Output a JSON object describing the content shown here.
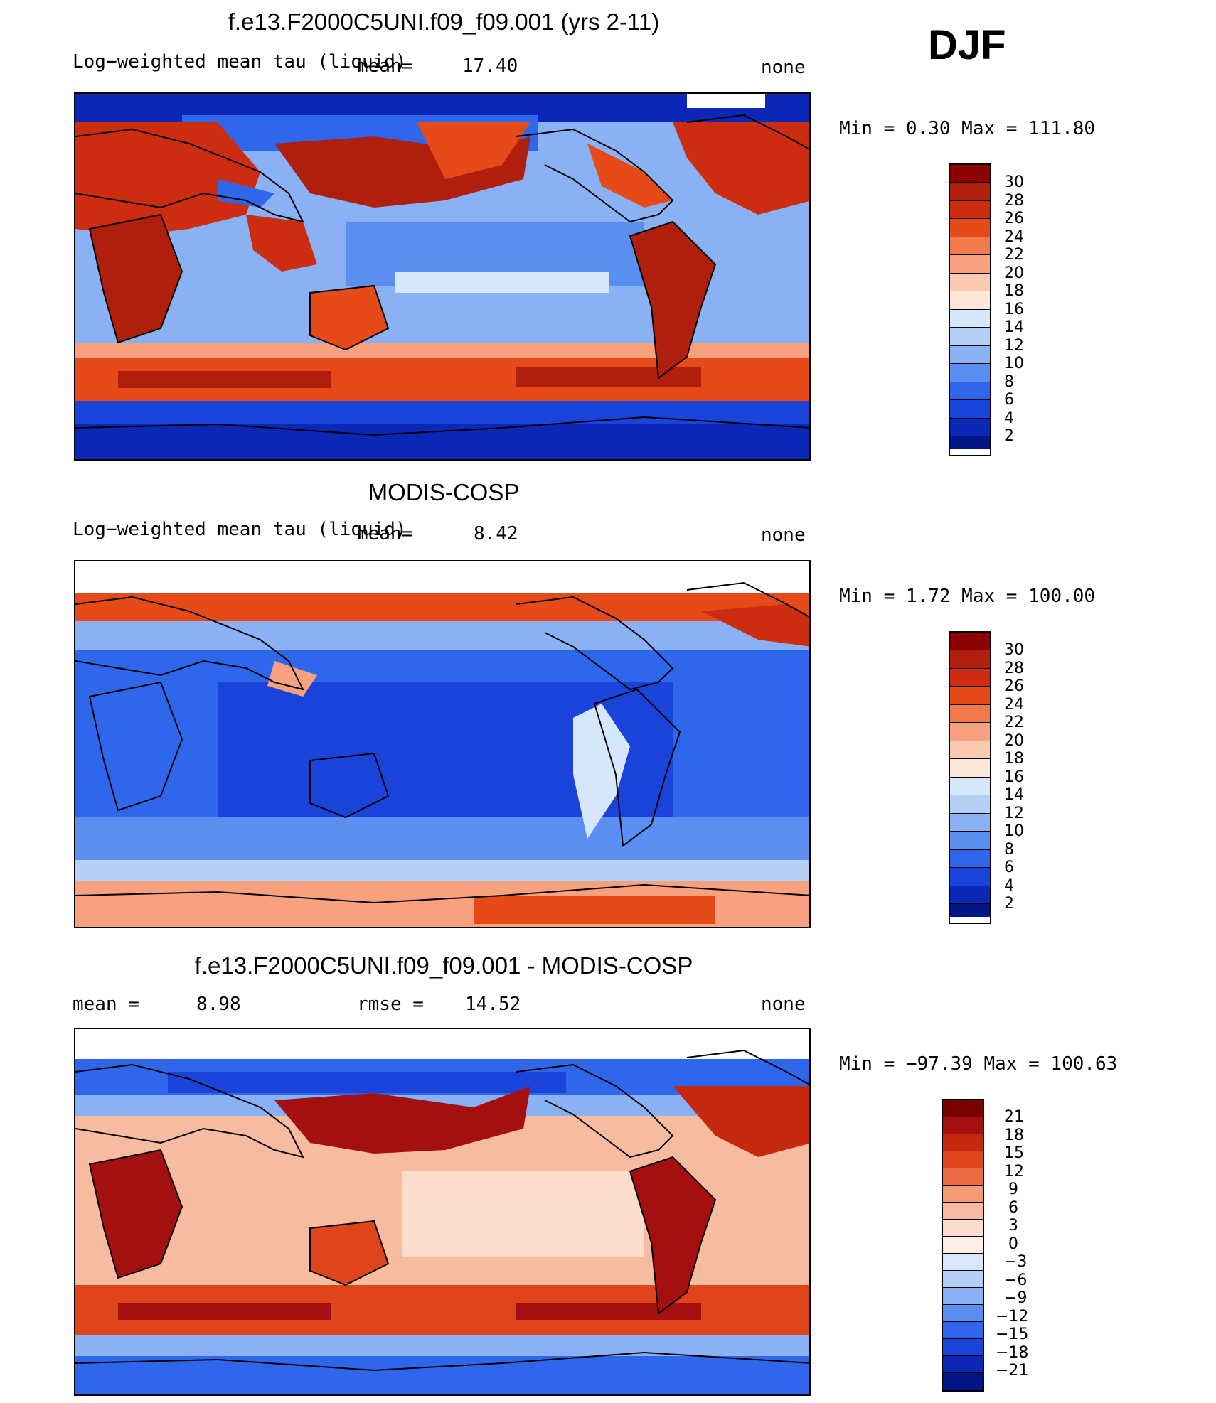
{
  "season": "DJF",
  "colors": {
    "tau_levels": [
      "#8b0000",
      "#b01e0e",
      "#cc2d10",
      "#e64a19",
      "#f37a4b",
      "#f7a17e",
      "#fccab0",
      "#fde7da",
      "#d6e7fb",
      "#b4d0f7",
      "#89b1f3",
      "#5a8ef0",
      "#2e66ec",
      "#1a44d9",
      "#0a27b5",
      "#001684",
      "#0a0a6e"
    ],
    "diff_levels": [
      "#7a0000",
      "#a40f0f",
      "#c6280e",
      "#e0441b",
      "#ec6a3f",
      "#f49a74",
      "#f7bba0",
      "#fcddcd",
      "#fdeee6",
      "#d9e6fb",
      "#b4d0f7",
      "#89b1f3",
      "#5a8ef0",
      "#2e66ec",
      "#1a44d9",
      "#0a27b5",
      "#001684",
      "#05005e"
    ]
  },
  "panels": [
    {
      "id": "model",
      "title": "f.e13.F2000C5UNI.f09_f09.001 (yrs 2-11)",
      "left_label": "Log−weighted mean tau (liquid)",
      "mean_label": "mean=",
      "mean_value": "17.40",
      "units": "none",
      "minmax": "Min =    0.30 Max = 111.80",
      "colorbar_ticks": [
        "30",
        "28",
        "26",
        "24",
        "22",
        "20",
        "18",
        "16",
        "14",
        "12",
        "10",
        "8",
        "6",
        "4",
        "2"
      ]
    },
    {
      "id": "obs",
      "title": "MODIS-COSP",
      "left_label": "Log−weighted mean tau (liquid)",
      "mean_label": "mean=",
      "mean_value": "8.42",
      "units": "none",
      "minmax": "Min =    1.72 Max = 100.00",
      "colorbar_ticks": [
        "30",
        "28",
        "26",
        "24",
        "22",
        "20",
        "18",
        "16",
        "14",
        "12",
        "10",
        "8",
        "6",
        "4",
        "2"
      ]
    },
    {
      "id": "diff",
      "title": "f.e13.F2000C5UNI.f09_f09.001 - MODIS-COSP",
      "mean_label": "mean =",
      "mean_value": "8.98",
      "rmse_label": "rmse =",
      "rmse_value": "14.52",
      "units": "none",
      "minmax": "Min = −97.39 Max = 100.63",
      "colorbar_ticks": [
        "21",
        "18",
        "15",
        "12",
        "9",
        "6",
        "3",
        "0",
        "−3",
        "−6",
        "−9",
        "−12",
        "−15",
        "−18",
        "−21"
      ]
    }
  ]
}
